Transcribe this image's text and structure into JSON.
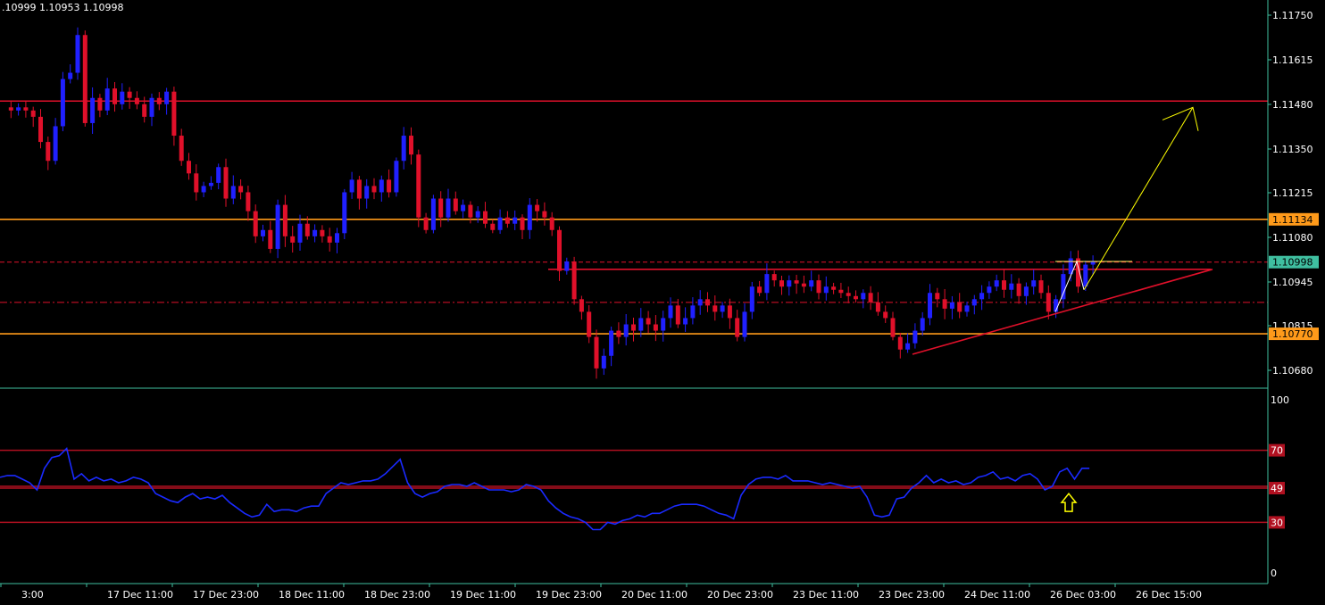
{
  "window": {
    "ohlc_readout": ".10999 1.10953 1.10998"
  },
  "colors": {
    "background": "#000000",
    "axis": "#3fbfa0",
    "bull_candle": "#2020ff",
    "bear_candle": "#e0102a",
    "resistance": "#e0102a",
    "support": "#ff9a1a",
    "rsi_line": "#1a2aff",
    "rsi_levels": "#b01020",
    "arrow": "#ffff00",
    "price_badge": "#ff9a1a",
    "current_badge": "#3fbfa0"
  },
  "chart_data": [
    {
      "type": "candlestick",
      "title": "",
      "ylim": [
        1.1062,
        1.1182
      ],
      "y_ticks": [
        "1.11750",
        "1.11615",
        "1.11480",
        "1.11350",
        "1.11215",
        "1.11080",
        "1.10945",
        "1.10815",
        "1.10680"
      ],
      "x_ticks": [
        "3:00",
        "17 Dec 11:00",
        "17 Dec 23:00",
        "18 Dec 11:00",
        "18 Dec 23:00",
        "19 Dec 11:00",
        "19 Dec 23:00",
        "20 Dec 11:00",
        "20 Dec 23:00",
        "23 Dec 11:00",
        "23 Dec 23:00",
        "24 Dec 11:00",
        "26 Dec 03:00",
        "26 Dec 15:00"
      ],
      "close_path": [
        1.1149,
        1.1148,
        1.1149,
        1.1148,
        1.1146,
        1.1138,
        1.1132,
        1.1143,
        1.1158,
        1.116,
        1.1172,
        1.1144,
        1.1152,
        1.1148,
        1.1155,
        1.115,
        1.1154,
        1.1152,
        1.115,
        1.1146,
        1.1152,
        1.115,
        1.1154,
        1.114,
        1.1132,
        1.1128,
        1.1122,
        1.1124,
        1.1125,
        1.113,
        1.112,
        1.1124,
        1.1122,
        1.1116,
        1.1108,
        1.111,
        1.1104,
        1.1118,
        1.1108,
        1.1106,
        1.1112,
        1.1108,
        1.111,
        1.1108,
        1.1106,
        1.1109,
        1.1122,
        1.1126,
        1.112,
        1.1124,
        1.1122,
        1.1126,
        1.1122,
        1.1132,
        1.114,
        1.1134,
        1.1114,
        1.111,
        1.112,
        1.1114,
        1.112,
        1.1116,
        1.1118,
        1.1114,
        1.1116,
        1.1112,
        1.111,
        1.1114,
        1.1112,
        1.1114,
        1.111,
        1.1118,
        1.1116,
        1.1114,
        1.111,
        1.1097,
        1.11,
        1.1088,
        1.1084,
        1.1076,
        1.1066,
        1.107,
        1.1078,
        1.1076,
        1.108,
        1.1078,
        1.1082,
        1.108,
        1.1078,
        1.1082,
        1.1086,
        1.108,
        1.1082,
        1.1086,
        1.1088,
        1.1086,
        1.1084,
        1.1086,
        1.1082,
        1.1076,
        1.1084,
        1.1092,
        1.109,
        1.1096,
        1.1094,
        1.1092,
        1.1094,
        1.1093,
        1.1092,
        1.1094,
        1.109,
        1.1092,
        1.1091,
        1.109,
        1.1089,
        1.1088,
        1.109,
        1.1087,
        1.1084,
        1.1082,
        1.1076,
        1.1072,
        1.1074,
        1.1078,
        1.1082,
        1.109,
        1.1088,
        1.1085,
        1.1087,
        1.1084,
        1.1086,
        1.1088,
        1.109,
        1.1092,
        1.1094,
        1.1091,
        1.1093,
        1.1089,
        1.1092,
        1.1094,
        1.109,
        1.1084,
        1.1088,
        1.1096,
        1.1101,
        1.1092,
        1.1099,
        1.11
      ]
    },
    {
      "type": "line",
      "indicator": "RSI",
      "ylim": [
        0,
        100
      ],
      "y_ticks": [
        "100",
        "70",
        "49",
        "30",
        "0"
      ],
      "levels": [
        70,
        50,
        49,
        30
      ],
      "values": [
        55,
        56,
        56,
        54,
        52,
        48,
        60,
        66,
        67,
        71,
        54,
        57,
        53,
        55,
        53,
        54,
        52,
        53,
        55,
        54,
        52,
        46,
        44,
        42,
        41,
        44,
        46,
        43,
        44,
        43,
        45,
        41,
        38,
        35,
        33,
        34,
        40,
        36,
        37,
        37,
        36,
        38,
        39,
        39,
        46,
        49,
        52,
        51,
        52,
        53,
        53,
        54,
        57,
        61,
        65,
        52,
        46,
        44,
        46,
        47,
        50,
        51,
        51,
        50,
        52,
        50,
        48,
        48,
        48,
        47,
        48,
        51,
        50,
        48,
        42,
        38,
        35,
        33,
        32,
        30,
        26,
        26,
        30,
        29,
        31,
        32,
        34,
        33,
        35,
        35,
        37,
        39,
        40,
        40,
        40,
        39,
        37,
        35,
        34,
        32,
        45,
        51,
        54,
        55,
        55,
        54,
        56,
        53,
        53,
        53,
        52,
        51,
        52,
        51,
        50,
        49,
        50,
        44,
        34,
        33,
        34,
        43,
        44,
        49,
        52,
        56,
        52,
        54,
        52,
        53,
        51,
        52,
        55,
        56,
        58,
        54,
        55,
        53,
        56,
        57,
        54,
        48,
        50,
        58,
        60,
        54,
        60,
        60
      ]
    }
  ],
  "price_axis": {
    "labels": [
      "1.11750",
      "1.11615",
      "1.11480",
      "1.11350",
      "1.11215",
      "1.11080",
      "1.10945",
      "1.10815",
      "1.10680"
    ],
    "badges": [
      {
        "name": "resistance-badge",
        "text": "1.11134",
        "price": 1.11134
      },
      {
        "name": "current-price-badge",
        "text": "1.10998",
        "price": 1.10998
      },
      {
        "name": "support-badge",
        "text": "1.10770",
        "price": 1.1077
      }
    ]
  },
  "rsi_axis": {
    "labels": [
      {
        "text": "100",
        "value": 100
      },
      {
        "text": "70",
        "value": 70
      },
      {
        "text": "49",
        "value": 49
      },
      {
        "text": "30",
        "value": 30
      },
      {
        "text": "0",
        "value": 0
      }
    ]
  },
  "drawings": {
    "horizontal_lines": [
      {
        "name": "resistance-line-top",
        "price": 1.1151,
        "style": "solid",
        "color": "#e0102a"
      },
      {
        "name": "support-line-upper",
        "price": 1.11134,
        "style": "solid",
        "color": "#ff9a1a"
      },
      {
        "name": "current-price-line",
        "price": 1.10998,
        "style": "dashed",
        "color": "#e0102a"
      },
      {
        "name": "dotted-level-line",
        "price": 1.1087,
        "style": "dashdot",
        "color": "#e0102a"
      },
      {
        "name": "support-line-lower",
        "price": 1.1077,
        "style": "solid",
        "color": "#ff9a1a"
      }
    ]
  }
}
